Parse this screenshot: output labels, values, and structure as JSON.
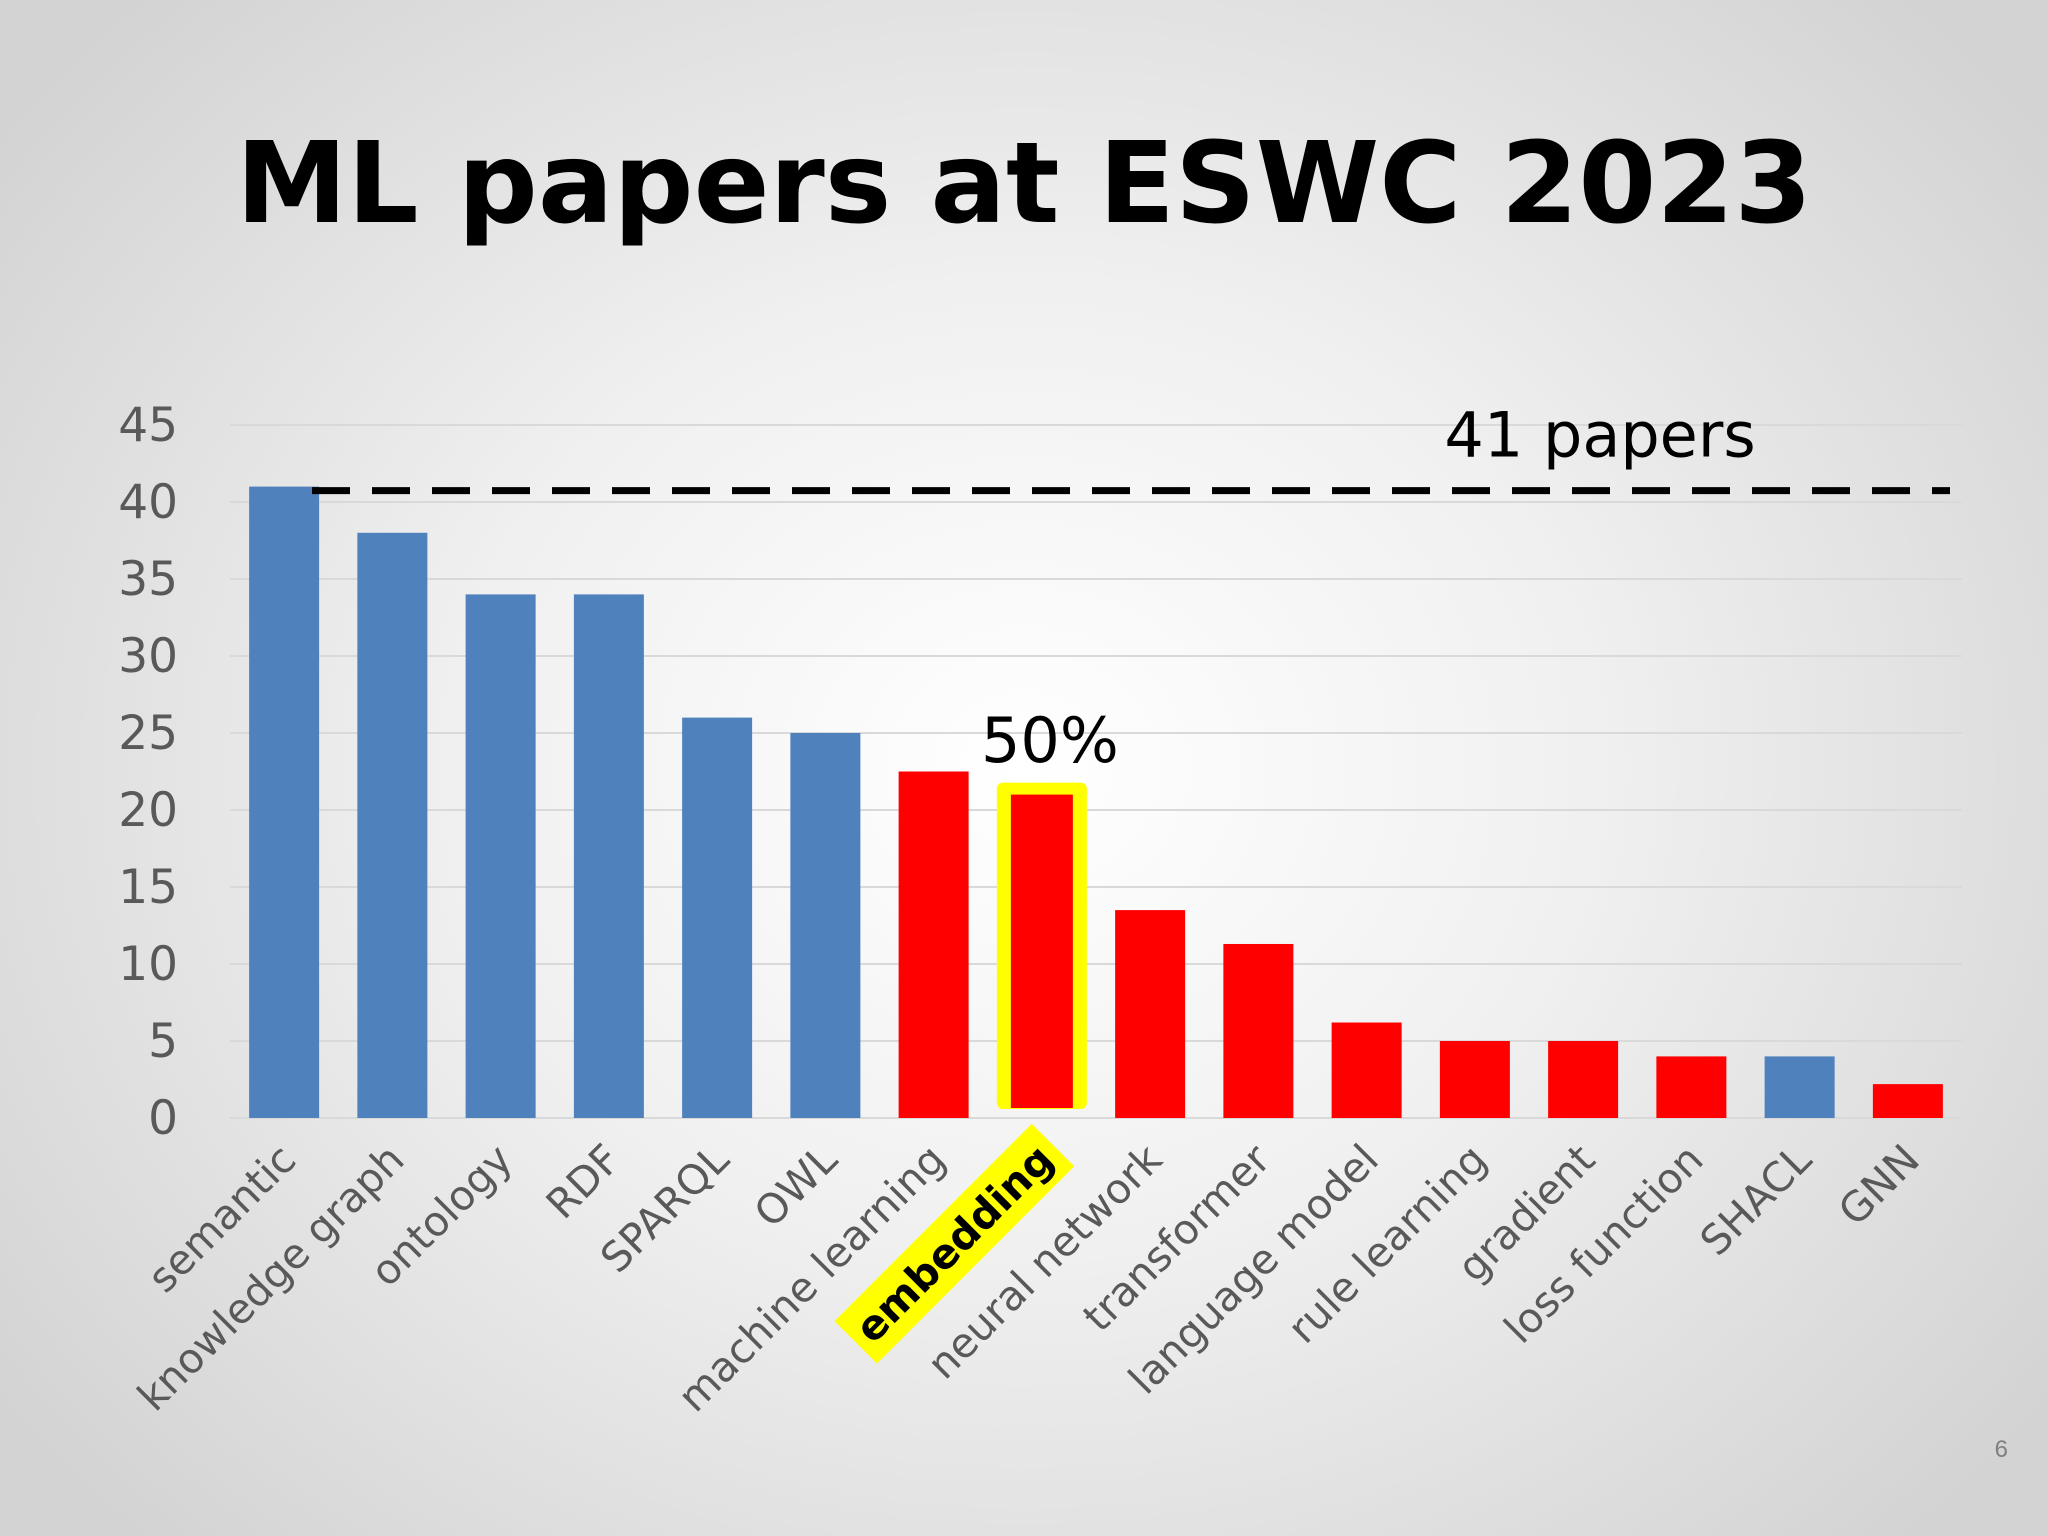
{
  "slide": {
    "title": "ML papers at ESWC 2023",
    "page_number": "6"
  },
  "colors": {
    "blue": "#4f81bd",
    "red": "#ff0000",
    "highlight": "#ffff00",
    "grid": "#d9d9d9",
    "reference": "#000000"
  },
  "chart_data": {
    "type": "bar",
    "title": "ML papers at ESWC 2023",
    "categories": [
      "semantic",
      "knowledge graph",
      "ontology",
      "RDF",
      "SPARQL",
      "OWL",
      "machine learning",
      "embedding",
      "neural network",
      "transformer",
      "language model",
      "rule learning",
      "gradient",
      "loss function",
      "SHACL",
      "GNN"
    ],
    "values": [
      41,
      38,
      34,
      34,
      26,
      25,
      22.5,
      21,
      13.5,
      11.3,
      6.2,
      5,
      5,
      4,
      4,
      2.2
    ],
    "bar_colors": [
      "blue",
      "blue",
      "blue",
      "blue",
      "blue",
      "blue",
      "red",
      "red",
      "red",
      "red",
      "red",
      "red",
      "red",
      "red",
      "blue",
      "red"
    ],
    "highlighted_category": "embedding",
    "ylim": [
      0,
      45
    ],
    "yticks": [
      0,
      5,
      10,
      15,
      20,
      25,
      30,
      35,
      40,
      45
    ],
    "grid": true,
    "reference_line": {
      "value": 41,
      "label": "41 papers",
      "style": "dashed"
    },
    "annotations": [
      {
        "text": "50%",
        "category": "embedding"
      }
    ]
  }
}
